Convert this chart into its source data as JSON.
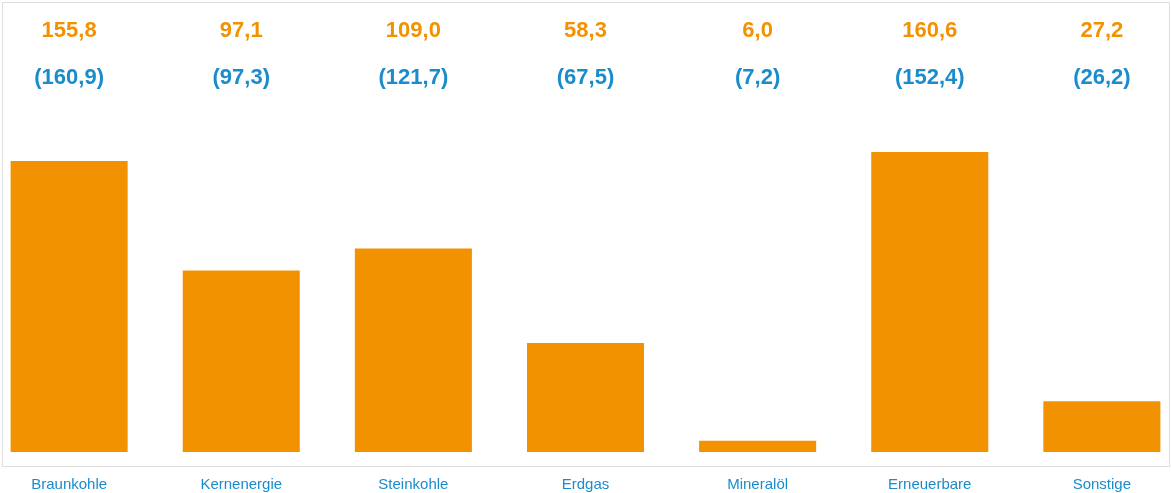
{
  "chart_data": {
    "type": "bar",
    "categories": [
      "Braunkohle",
      "Kernenergie",
      "Steinkohle",
      "Erdgas",
      "Mineralöl",
      "Erneuerbare",
      "Sonstige"
    ],
    "values": [
      155.8,
      97.1,
      109.0,
      58.3,
      6.0,
      160.6,
      27.2
    ],
    "value_labels": [
      "155,8",
      "97,1",
      "109,0",
      "58,3",
      "6,0",
      "160,6",
      "27,2"
    ],
    "color": "#f39200",
    "annotations": [
      "(160,9)",
      "(97,3)",
      "(121,7)",
      "(67,5)",
      "(7,2)",
      "(152,4)",
      "(26,2)"
    ],
    "grid": false
  }
}
